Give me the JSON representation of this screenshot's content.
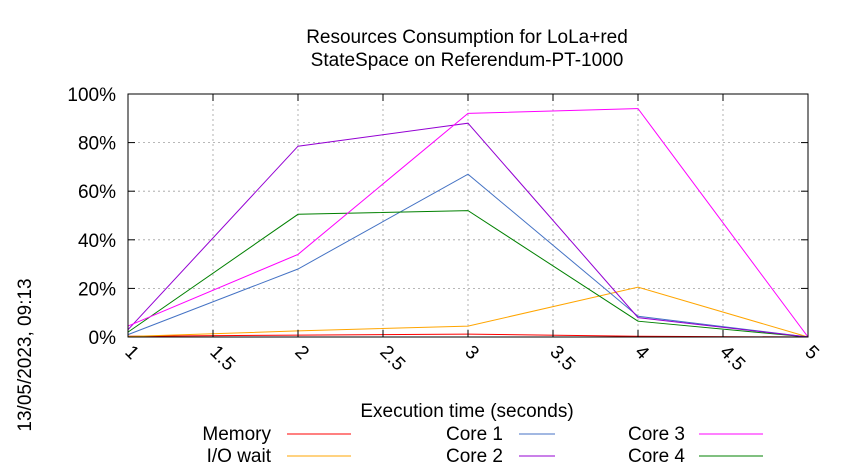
{
  "chart_data": {
    "type": "line",
    "title": [
      "Resources Consumption for LoLa+red",
      "StateSpace on Referendum-PT-1000"
    ],
    "xlabel": "Execution time (seconds)",
    "ylabel": "",
    "side_label": "13/05/2023, 09:13",
    "xlim": [
      1,
      5
    ],
    "ylim": [
      0,
      100
    ],
    "x_ticks": [
      "1",
      "1.5",
      "2",
      "2.5",
      "3",
      "3.5",
      "4",
      "4.5",
      "5"
    ],
    "y_ticks": [
      "0%",
      "20%",
      "40%",
      "60%",
      "80%",
      "100%"
    ],
    "grid": true,
    "legend_position": "bottom",
    "series": [
      {
        "name": "Memory",
        "color": "#ff0000",
        "x": [
          1,
          2,
          3,
          4,
          5
        ],
        "y": [
          0.3,
          0.8,
          1.2,
          0.3,
          0
        ]
      },
      {
        "name": "I/O wait",
        "color": "#ffa500",
        "x": [
          1,
          2,
          3,
          4,
          5
        ],
        "y": [
          0.2,
          2.5,
          4.5,
          20.5,
          0
        ]
      },
      {
        "name": "Core 1",
        "color": "#4472c4",
        "x": [
          1,
          2,
          3,
          4,
          5
        ],
        "y": [
          1,
          28,
          67,
          8.5,
          0
        ]
      },
      {
        "name": "Core 2",
        "color": "#9400d3",
        "x": [
          1,
          2,
          3,
          4,
          5
        ],
        "y": [
          3,
          78.5,
          88,
          8,
          0
        ]
      },
      {
        "name": "Core 3",
        "color": "#ff00ff",
        "x": [
          1,
          2,
          3,
          4,
          5
        ],
        "y": [
          4.5,
          34,
          92,
          94,
          0
        ]
      },
      {
        "name": "Core 4",
        "color": "#008000",
        "x": [
          1,
          2,
          3,
          4,
          5
        ],
        "y": [
          2,
          50.5,
          52,
          6.5,
          0
        ]
      }
    ]
  }
}
